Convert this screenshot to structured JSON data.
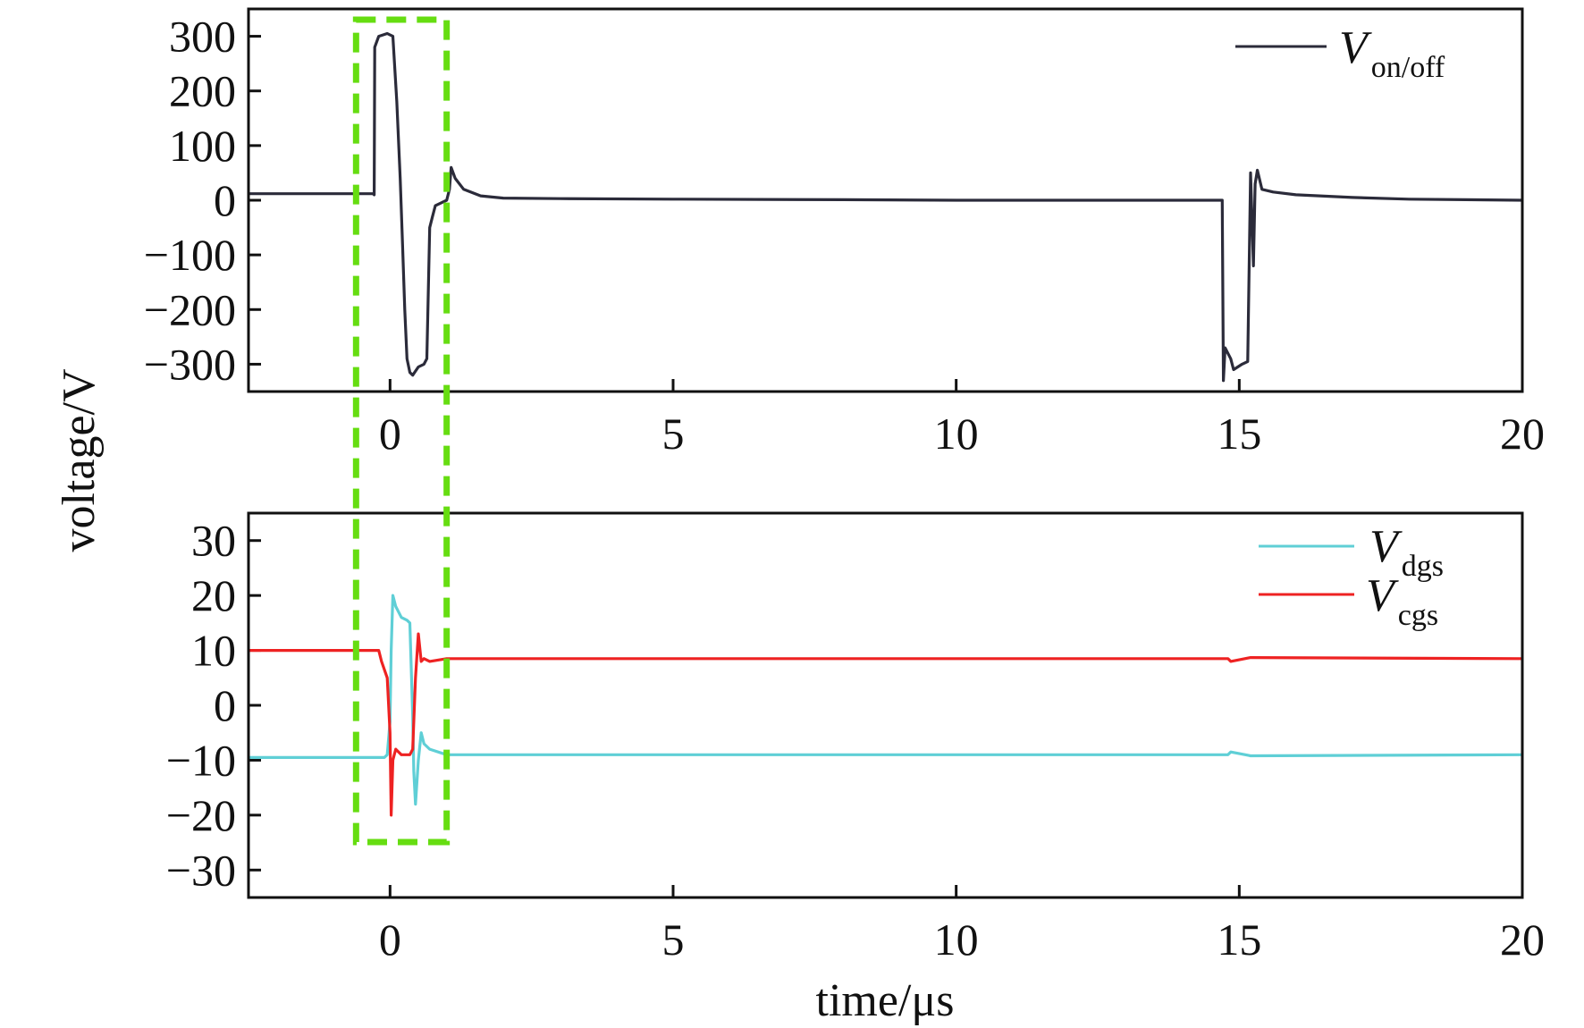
{
  "chart_data": [
    {
      "type": "line",
      "panel": "top",
      "xlim": [
        -2.5,
        20
      ],
      "ylim": [
        -350,
        350
      ],
      "x_ticks": [
        0,
        5,
        10,
        15,
        20
      ],
      "x_tick_labels": [
        "0",
        "5",
        "10",
        "15",
        "20"
      ],
      "y_ticks": [
        300,
        200,
        100,
        0,
        -100,
        -200,
        -300
      ],
      "y_tick_labels": [
        "300",
        "200",
        "100",
        "0",
        "−100",
        "−200",
        "−300"
      ],
      "legend_position": "top-right",
      "series": [
        {
          "name": "V",
          "name_subscript": "on/off",
          "color": "#2b2b3a",
          "points": [
            [
              -2.5,
              12
            ],
            [
              -0.3,
              12
            ],
            [
              -0.28,
              10
            ],
            [
              -0.27,
              280
            ],
            [
              -0.2,
              300
            ],
            [
              -0.05,
              305
            ],
            [
              0.05,
              300
            ],
            [
              0.12,
              180
            ],
            [
              0.18,
              40
            ],
            [
              0.22,
              -80
            ],
            [
              0.26,
              -200
            ],
            [
              0.3,
              -290
            ],
            [
              0.35,
              -315
            ],
            [
              0.4,
              -320
            ],
            [
              0.5,
              -305
            ],
            [
              0.6,
              -300
            ],
            [
              0.65,
              -290
            ],
            [
              0.7,
              -50
            ],
            [
              0.75,
              -30
            ],
            [
              0.8,
              -10
            ],
            [
              0.9,
              -5
            ],
            [
              1.0,
              0
            ],
            [
              1.05,
              20
            ],
            [
              1.08,
              60
            ],
            [
              1.15,
              40
            ],
            [
              1.3,
              20
            ],
            [
              1.6,
              8
            ],
            [
              2.0,
              4
            ],
            [
              3,
              3
            ],
            [
              5,
              2
            ],
            [
              8,
              1
            ],
            [
              10,
              0
            ],
            [
              12,
              0
            ],
            [
              14.7,
              0
            ],
            [
              14.72,
              -330
            ],
            [
              14.75,
              -270
            ],
            [
              14.85,
              -290
            ],
            [
              14.9,
              -310
            ],
            [
              15.05,
              -300
            ],
            [
              15.15,
              -295
            ],
            [
              15.2,
              50
            ],
            [
              15.25,
              -120
            ],
            [
              15.28,
              30
            ],
            [
              15.32,
              55
            ],
            [
              15.4,
              20
            ],
            [
              15.6,
              15
            ],
            [
              16,
              10
            ],
            [
              17,
              5
            ],
            [
              18,
              2
            ],
            [
              20,
              0
            ]
          ]
        }
      ]
    },
    {
      "type": "line",
      "panel": "bottom",
      "xlabel": "time/μs",
      "ylabel": "voltage/V",
      "xlim": [
        -2.5,
        20
      ],
      "ylim": [
        -35,
        35
      ],
      "x_ticks": [
        0,
        5,
        10,
        15,
        20
      ],
      "x_tick_labels": [
        "0",
        "5",
        "10",
        "15",
        "20"
      ],
      "y_ticks": [
        30,
        20,
        10,
        0,
        -10,
        -20,
        -30
      ],
      "y_tick_labels": [
        "30",
        "20",
        "10",
        "0",
        "−10",
        "−20",
        "−30"
      ],
      "legend_position": "top-right",
      "series": [
        {
          "name": "V",
          "name_subscript": "dgs",
          "color": "#5fcfd6",
          "points": [
            [
              -2.5,
              -9.5
            ],
            [
              -0.1,
              -9.5
            ],
            [
              -0.05,
              -9
            ],
            [
              0.0,
              -3
            ],
            [
              0.02,
              10
            ],
            [
              0.05,
              20
            ],
            [
              0.1,
              18
            ],
            [
              0.2,
              16
            ],
            [
              0.3,
              15.5
            ],
            [
              0.35,
              15
            ],
            [
              0.4,
              -2
            ],
            [
              0.42,
              -12
            ],
            [
              0.45,
              -18
            ],
            [
              0.5,
              -10
            ],
            [
              0.55,
              -5
            ],
            [
              0.6,
              -7
            ],
            [
              0.7,
              -8
            ],
            [
              1.0,
              -9
            ],
            [
              2,
              -9
            ],
            [
              5,
              -9
            ],
            [
              10,
              -9
            ],
            [
              14.8,
              -9
            ],
            [
              14.85,
              -8.5
            ],
            [
              15.2,
              -9.2
            ],
            [
              20,
              -9
            ]
          ]
        },
        {
          "name": "V",
          "name_subscript": "cgs",
          "color": "#ee2222",
          "points": [
            [
              -2.5,
              10
            ],
            [
              -0.2,
              10
            ],
            [
              -0.15,
              8
            ],
            [
              -0.05,
              5
            ],
            [
              0.0,
              -5
            ],
            [
              0.02,
              -20
            ],
            [
              0.05,
              -10
            ],
            [
              0.1,
              -8
            ],
            [
              0.2,
              -9
            ],
            [
              0.35,
              -9
            ],
            [
              0.4,
              -8
            ],
            [
              0.45,
              5
            ],
            [
              0.5,
              13
            ],
            [
              0.55,
              8
            ],
            [
              0.6,
              8.5
            ],
            [
              0.7,
              8
            ],
            [
              1.0,
              8.5
            ],
            [
              3,
              8.5
            ],
            [
              10,
              8.5
            ],
            [
              14.8,
              8.5
            ],
            [
              14.85,
              8
            ],
            [
              15.2,
              8.7
            ],
            [
              20,
              8.5
            ]
          ]
        }
      ]
    }
  ],
  "highlight_box": {
    "color": "#66dd11",
    "x_range": [
      -0.6,
      1.0
    ]
  }
}
